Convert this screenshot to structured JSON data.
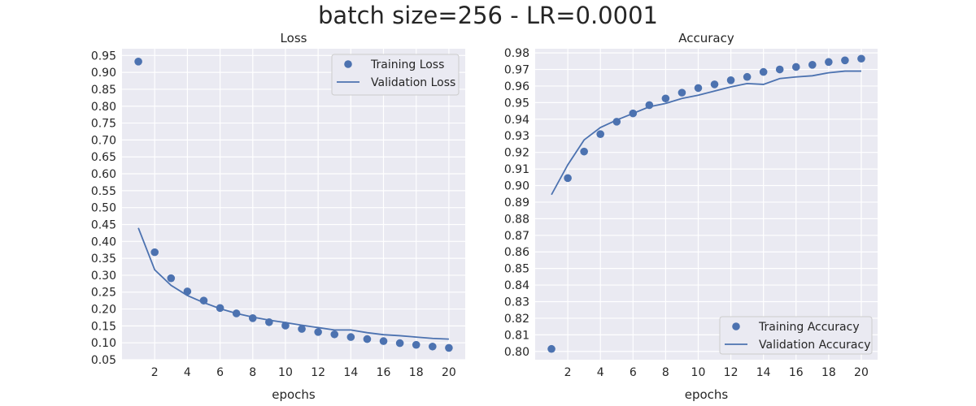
{
  "figure_title": "batch size=256 - LR=0.0001",
  "colors": {
    "plot_bg": "#EAEAF2",
    "grid": "#FFFFFF",
    "series": "#4C72B0",
    "text": "#262626"
  },
  "chart_data": [
    {
      "type": "line",
      "title": "Loss",
      "xlabel": "epochs",
      "ylabel": "",
      "xlim": [
        0,
        21
      ],
      "ylim": [
        0.05,
        0.97
      ],
      "xticks": [
        2,
        4,
        6,
        8,
        10,
        12,
        14,
        16,
        18,
        20
      ],
      "xtick_labels": [
        "2",
        "4",
        "6",
        "8",
        "10",
        "12",
        "14",
        "16",
        "18",
        "20"
      ],
      "yticks": [
        0.05,
        0.1,
        0.15,
        0.2,
        0.25,
        0.3,
        0.35,
        0.4,
        0.45,
        0.5,
        0.55,
        0.6,
        0.65,
        0.7,
        0.75,
        0.8,
        0.85,
        0.9,
        0.95
      ],
      "ytick_labels": [
        "0.05",
        "0.10",
        "0.15",
        "0.20",
        "0.25",
        "0.30",
        "0.35",
        "0.40",
        "0.45",
        "0.50",
        "0.55",
        "0.60",
        "0.65",
        "0.70",
        "0.75",
        "0.80",
        "0.85",
        "0.90",
        "0.95"
      ],
      "grid": true,
      "legend_position": "top-right",
      "x": [
        1,
        2,
        3,
        4,
        5,
        6,
        7,
        8,
        9,
        10,
        11,
        12,
        13,
        14,
        15,
        16,
        17,
        18,
        19,
        20
      ],
      "series": [
        {
          "name": "Training Loss",
          "style": "markers",
          "values": [
            0.932,
            0.368,
            0.291,
            0.252,
            0.225,
            0.203,
            0.187,
            0.173,
            0.161,
            0.151,
            0.141,
            0.132,
            0.125,
            0.117,
            0.111,
            0.105,
            0.099,
            0.094,
            0.089,
            0.085
          ]
        },
        {
          "name": "Validation Loss",
          "style": "line",
          "values": [
            0.44,
            0.316,
            0.27,
            0.24,
            0.219,
            0.201,
            0.187,
            0.176,
            0.167,
            0.16,
            0.152,
            0.145,
            0.138,
            0.138,
            0.13,
            0.124,
            0.121,
            0.117,
            0.113,
            0.111
          ]
        }
      ]
    },
    {
      "type": "line",
      "title": "Accuracy",
      "xlabel": "epochs",
      "ylabel": "",
      "xlim": [
        0,
        21
      ],
      "ylim": [
        0.795,
        0.9825
      ],
      "xticks": [
        2,
        4,
        6,
        8,
        10,
        12,
        14,
        16,
        18,
        20
      ],
      "xtick_labels": [
        "2",
        "4",
        "6",
        "8",
        "10",
        "12",
        "14",
        "16",
        "18",
        "20"
      ],
      "yticks": [
        0.8,
        0.81,
        0.82,
        0.83,
        0.84,
        0.85,
        0.86,
        0.87,
        0.88,
        0.89,
        0.9,
        0.91,
        0.92,
        0.93,
        0.94,
        0.95,
        0.96,
        0.97,
        0.98
      ],
      "ytick_labels": [
        "0.80",
        "0.81",
        "0.82",
        "0.83",
        "0.84",
        "0.85",
        "0.86",
        "0.87",
        "0.88",
        "0.89",
        "0.90",
        "0.91",
        "0.92",
        "0.93",
        "0.94",
        "0.95",
        "0.96",
        "0.97",
        "0.98"
      ],
      "grid": true,
      "legend_position": "bottom-right",
      "x": [
        1,
        2,
        3,
        4,
        5,
        6,
        7,
        8,
        9,
        10,
        11,
        12,
        13,
        14,
        15,
        16,
        17,
        18,
        19,
        20
      ],
      "series": [
        {
          "name": "Training Accuracy",
          "style": "markers",
          "values": [
            0.8015,
            0.9045,
            0.9205,
            0.931,
            0.9385,
            0.9435,
            0.9485,
            0.9525,
            0.956,
            0.9588,
            0.961,
            0.9635,
            0.9655,
            0.9685,
            0.97,
            0.9715,
            0.9728,
            0.9745,
            0.9755,
            0.9765
          ]
        },
        {
          "name": "Validation Accuracy",
          "style": "line",
          "values": [
            0.8945,
            0.9125,
            0.9275,
            0.935,
            0.9395,
            0.9435,
            0.9475,
            0.9495,
            0.9525,
            0.9545,
            0.957,
            0.9595,
            0.9615,
            0.961,
            0.9645,
            0.9655,
            0.9662,
            0.968,
            0.969,
            0.969
          ]
        }
      ]
    }
  ]
}
